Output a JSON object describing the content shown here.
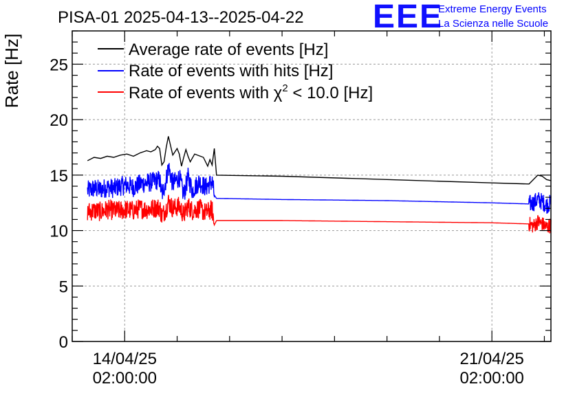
{
  "header": {
    "title": "PISA-01 2025-04-13--2025-04-22",
    "logo": "EEE",
    "logo_line1": "Extreme Energy Events",
    "logo_line2": "La Scienza nelle Scuole"
  },
  "legend_chi2": {
    "prefix": "Rate of events with χ",
    "sup": "2",
    "suffix": " < 10.0 [Hz]"
  },
  "chart_data": {
    "type": "line",
    "title": "PISA-01 2025-04-13--2025-04-22",
    "ylabel": "Rate [Hz]",
    "xlabel": "",
    "ylim": [
      0,
      28
    ],
    "yticks": [
      0,
      5,
      10,
      15,
      20,
      25
    ],
    "xlim": [
      "2025-04-13T02:00:00",
      "2025-04-22T05:00:00"
    ],
    "xticks": [
      {
        "x": "2025-04-14T02:00:00",
        "line1": "14/04/25",
        "line2": "02:00:00"
      },
      {
        "x": "2025-04-21T02:00:00",
        "line1": "21/04/25",
        "line2": "02:00:00"
      }
    ],
    "grid": true,
    "legend_position": "top-left",
    "colors": {
      "black": "#000000",
      "blue": "#0000ff",
      "red": "#ff0000"
    },
    "series": [
      {
        "name": "Average rate of events [Hz]",
        "color": "#000000",
        "x": [
          "2025-04-13T09:00",
          "2025-04-13T12:00",
          "2025-04-13T15:00",
          "2025-04-13T18:00",
          "2025-04-13T21:00",
          "2025-04-14T00:00",
          "2025-04-14T03:00",
          "2025-04-14T06:00",
          "2025-04-14T09:00",
          "2025-04-14T12:00",
          "2025-04-14T14:00",
          "2025-04-14T16:00",
          "2025-04-14T17:00",
          "2025-04-14T18:00",
          "2025-04-14T19:00",
          "2025-04-14T20:00",
          "2025-04-14T21:00",
          "2025-04-14T22:00",
          "2025-04-15T00:00",
          "2025-04-15T02:00",
          "2025-04-15T03:00",
          "2025-04-15T04:00",
          "2025-04-15T05:00",
          "2025-04-15T06:00",
          "2025-04-15T07:00",
          "2025-04-15T08:00",
          "2025-04-15T10:00",
          "2025-04-15T14:00",
          "2025-04-15T16:00",
          "2025-04-15T17:00",
          "2025-04-15T18:00",
          "2025-04-15T19:00",
          "2025-04-15T20:00",
          "2025-04-17T02:00",
          "2025-04-19T02:00",
          "2025-04-21T02:00",
          "2025-04-21T19:00",
          "2025-04-21T21:00",
          "2025-04-21T23:00",
          "2025-04-22T01:00",
          "2025-04-22T03:00",
          "2025-04-22T05:00"
        ],
        "values": [
          16.3,
          16.6,
          16.5,
          16.7,
          16.6,
          16.8,
          16.9,
          16.7,
          17.0,
          17.2,
          17.1,
          17.3,
          17.6,
          17.4,
          15.9,
          16.2,
          17.5,
          18.5,
          16.8,
          17.4,
          16.9,
          15.8,
          16.6,
          17.3,
          16.7,
          16.2,
          16.9,
          16.6,
          15.8,
          16.4,
          15.9,
          17.4,
          15.0,
          14.9,
          14.6,
          14.3,
          14.2,
          14.6,
          15.0,
          14.9,
          14.6,
          14.5
        ]
      },
      {
        "name": "Rate of events with hits [Hz]",
        "color": "#0000ff",
        "x": [
          "2025-04-13T09:00",
          "2025-04-13T12:00",
          "2025-04-13T15:00",
          "2025-04-13T18:00",
          "2025-04-13T21:00",
          "2025-04-14T00:00",
          "2025-04-14T03:00",
          "2025-04-14T06:00",
          "2025-04-14T09:00",
          "2025-04-14T12:00",
          "2025-04-14T15:00",
          "2025-04-14T18:00",
          "2025-04-14T19:00",
          "2025-04-14T21:00",
          "2025-04-14T22:00",
          "2025-04-15T00:00",
          "2025-04-15T03:00",
          "2025-04-15T05:00",
          "2025-04-15T07:00",
          "2025-04-15T09:00",
          "2025-04-15T12:00",
          "2025-04-15T15:00",
          "2025-04-15T18:00",
          "2025-04-15T19:00",
          "2025-04-15T20:00",
          "2025-04-17T02:00",
          "2025-04-19T02:00",
          "2025-04-21T02:00",
          "2025-04-21T19:00",
          "2025-04-21T21:00",
          "2025-04-21T23:00",
          "2025-04-22T01:00",
          "2025-04-22T03:00",
          "2025-04-22T05:00"
        ],
        "values": [
          13.6,
          13.8,
          13.7,
          13.9,
          13.8,
          14.0,
          14.1,
          13.9,
          14.2,
          14.3,
          14.4,
          14.6,
          13.2,
          14.6,
          15.8,
          14.2,
          14.8,
          13.2,
          14.8,
          13.6,
          14.4,
          13.9,
          14.4,
          13.2,
          12.9,
          12.8,
          12.7,
          12.5,
          12.4,
          12.5,
          12.8,
          12.6,
          12.3,
          12.5
        ]
      },
      {
        "name": "Rate of events with χ² < 10.0 [Hz]",
        "color": "#ff0000",
        "x": [
          "2025-04-13T09:00",
          "2025-04-13T12:00",
          "2025-04-13T15:00",
          "2025-04-13T18:00",
          "2025-04-13T21:00",
          "2025-04-14T00:00",
          "2025-04-14T03:00",
          "2025-04-14T06:00",
          "2025-04-14T09:00",
          "2025-04-14T12:00",
          "2025-04-14T15:00",
          "2025-04-14T18:00",
          "2025-04-14T19:00",
          "2025-04-14T21:00",
          "2025-04-14T22:00",
          "2025-04-15T00:00",
          "2025-04-15T03:00",
          "2025-04-15T05:00",
          "2025-04-15T07:00",
          "2025-04-15T09:00",
          "2025-04-15T12:00",
          "2025-04-15T15:00",
          "2025-04-15T18:00",
          "2025-04-15T19:00",
          "2025-04-15T20:00",
          "2025-04-17T02:00",
          "2025-04-19T02:00",
          "2025-04-21T02:00",
          "2025-04-21T19:00",
          "2025-04-21T21:00",
          "2025-04-21T23:00",
          "2025-04-22T01:00",
          "2025-04-22T03:00",
          "2025-04-22T05:00"
        ],
        "values": [
          11.7,
          11.8,
          11.7,
          11.9,
          11.8,
          11.8,
          11.9,
          11.8,
          12.0,
          11.9,
          12.0,
          12.1,
          11.3,
          12.0,
          12.6,
          12.0,
          12.2,
          11.4,
          12.2,
          11.8,
          12.0,
          11.6,
          11.9,
          10.5,
          10.9,
          10.9,
          10.8,
          10.7,
          10.6,
          10.4,
          10.8,
          10.6,
          10.3,
          10.5
        ]
      }
    ],
    "noise_bands": [
      {
        "series": 1,
        "x0": "2025-04-13T09:00",
        "x1": "2025-04-15T19:00",
        "amp": 0.9
      },
      {
        "series": 1,
        "x0": "2025-04-21T19:00",
        "x1": "2025-04-22T05:00",
        "amp": 0.8
      },
      {
        "series": 2,
        "x0": "2025-04-13T09:00",
        "x1": "2025-04-15T19:00",
        "amp": 0.9
      },
      {
        "series": 2,
        "x0": "2025-04-21T19:00",
        "x1": "2025-04-22T05:00",
        "amp": 0.7
      }
    ]
  }
}
